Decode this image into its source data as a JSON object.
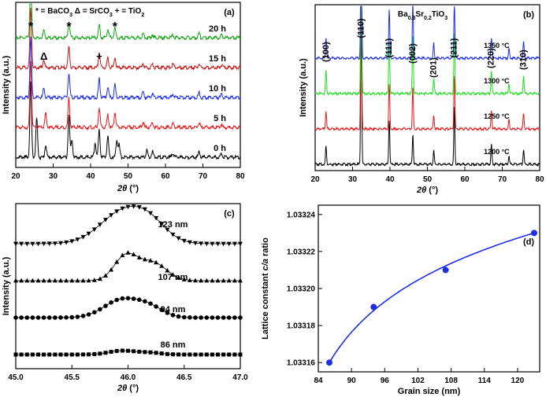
{
  "chart_data": [
    {
      "panel": "(a)",
      "type": "line",
      "legend_text": {
        "items": [
          {
            "symbol": "*",
            "label": "= BaCO",
            "sub": "3"
          },
          {
            "symbol": "Δ",
            "label": "= SrCO",
            "sub": "3"
          },
          {
            "symbol": "+",
            "label": "= TiO",
            "sub": "2"
          }
        ]
      },
      "xlabel": {
        "italic": "2θ",
        "rest": " (°)"
      },
      "ylabel": "Intensity (a.u.)",
      "xlim": [
        20,
        80
      ],
      "xticks": [
        "20",
        "30",
        "40",
        "50",
        "60",
        "70",
        "80"
      ],
      "peak_markers": [
        {
          "symbol": "*",
          "x": 24
        },
        {
          "symbol": "Δ",
          "x": 27.5
        },
        {
          "symbol": "*",
          "x": 34.2
        },
        {
          "symbol": "+",
          "x": 42.3
        },
        {
          "symbol": "*",
          "x": 46.5
        }
      ],
      "series": [
        {
          "name": "0 h",
          "color": "#000000",
          "offset": 0,
          "peaks": [
            [
              24,
              105
            ],
            [
              25.6,
              55
            ],
            [
              28,
              18
            ],
            [
              34.2,
              60
            ],
            [
              35,
              25
            ],
            [
              41.2,
              22
            ],
            [
              42.3,
              38
            ],
            [
              44.6,
              30
            ],
            [
              47,
              25
            ],
            [
              47.6,
              18
            ],
            [
              55,
              10
            ],
            [
              56.5,
              8
            ],
            [
              62,
              6
            ],
            [
              69,
              8
            ],
            [
              75,
              5
            ]
          ]
        },
        {
          "name": "5 h",
          "color": "#e31a1c",
          "offset": 1,
          "peaks": [
            [
              24,
              95
            ],
            [
              28,
              20
            ],
            [
              34.2,
              42
            ],
            [
              42.3,
              28
            ],
            [
              44.6,
              18
            ],
            [
              46.5,
              22
            ],
            [
              54,
              8
            ],
            [
              56.5,
              6
            ],
            [
              62,
              5
            ],
            [
              69,
              7
            ],
            [
              75,
              4
            ]
          ]
        },
        {
          "name": "10 h",
          "color": "#1f2fe0",
          "offset": 2,
          "peaks": [
            [
              24,
              85
            ],
            [
              27.5,
              12
            ],
            [
              34.2,
              35
            ],
            [
              42.3,
              26
            ],
            [
              44.6,
              16
            ],
            [
              46.5,
              18
            ],
            [
              54,
              8
            ],
            [
              56.5,
              6
            ],
            [
              62,
              5
            ],
            [
              69,
              7
            ],
            [
              75,
              4
            ]
          ]
        },
        {
          "name": "15 h",
          "color": "#c21818",
          "offset": 3,
          "peaks": [
            [
              24,
              85
            ],
            [
              27.5,
              12
            ],
            [
              34.2,
              30
            ],
            [
              42.3,
              22
            ],
            [
              44.6,
              14
            ],
            [
              46.5,
              15
            ],
            [
              54,
              7
            ],
            [
              56.5,
              5
            ],
            [
              62,
              5
            ],
            [
              69,
              6
            ],
            [
              75,
              4
            ]
          ]
        },
        {
          "name": "20 h",
          "color": "#1aa31a",
          "offset": 4,
          "peaks": [
            [
              24,
              85
            ],
            [
              27.5,
              10
            ],
            [
              34.2,
              24
            ],
            [
              42.3,
              18
            ],
            [
              44.6,
              12
            ],
            [
              46.5,
              14
            ],
            [
              54,
              6
            ],
            [
              56.5,
              5
            ],
            [
              62,
              4
            ],
            [
              69,
              6
            ],
            [
              75,
              4
            ]
          ]
        }
      ]
    },
    {
      "panel": "(b)",
      "type": "line",
      "title": {
        "parts": [
          [
            "Ba",
            ""
          ],
          [
            "0.8",
            "sub"
          ],
          [
            "Sr",
            ""
          ],
          [
            "0.2",
            "sub"
          ],
          [
            "TiO",
            ""
          ],
          [
            "3",
            "sub"
          ]
        ]
      },
      "xlabel": {
        "italic": "2θ",
        "rest": " (°)"
      },
      "ylabel": "Intensity (a.u.)",
      "xlim": [
        20,
        80
      ],
      "xticks": [
        "20",
        "30",
        "40",
        "50",
        "60",
        "70",
        "80"
      ],
      "miller_indices": [
        {
          "label": "(100)",
          "x": 22.9
        },
        {
          "label": "(110)",
          "x": 32.3
        },
        {
          "label": "(111)",
          "x": 39.8
        },
        {
          "label": "(002)",
          "x": 46.1
        },
        {
          "label": "(201)",
          "x": 51.7
        },
        {
          "label": "(211)",
          "x": 57.2
        },
        {
          "label": "(220)",
          "x": 67.1
        },
        {
          "label": "(310)",
          "x": 75.7
        }
      ],
      "series": [
        {
          "name": "1200 °C",
          "color": "#000000",
          "offset": 0,
          "peaks": [
            [
              22.9,
              12
            ],
            [
              32.3,
              100
            ],
            [
              39.8,
              30
            ],
            [
              46.1,
              20
            ],
            [
              51.7,
              9
            ],
            [
              57.2,
              38
            ],
            [
              67.1,
              13
            ],
            [
              71.8,
              6
            ],
            [
              75.7,
              10
            ]
          ]
        },
        {
          "name": "1250 °C",
          "color": "#e31a1c",
          "offset": 1,
          "peaks": [
            [
              22.9,
              12
            ],
            [
              32.3,
              100
            ],
            [
              39.8,
              30
            ],
            [
              46.1,
              28
            ],
            [
              51.7,
              9
            ],
            [
              57.2,
              36
            ],
            [
              67.1,
              13
            ],
            [
              71.8,
              6
            ],
            [
              75.7,
              10
            ]
          ]
        },
        {
          "name": "1300 °C",
          "color": "#1ee01e",
          "offset": 2,
          "peaks": [
            [
              22.9,
              15
            ],
            [
              32.3,
              100
            ],
            [
              39.8,
              35
            ],
            [
              46.1,
              40
            ],
            [
              51.7,
              10
            ],
            [
              57.2,
              40
            ],
            [
              67.1,
              15
            ],
            [
              71.8,
              7
            ],
            [
              75.7,
              12
            ]
          ]
        },
        {
          "name": "1350 °C",
          "color": "#1f2fe0",
          "offset": 3,
          "peaks": [
            [
              22.9,
              14
            ],
            [
              32.3,
              100
            ],
            [
              39.8,
              32
            ],
            [
              46.1,
              38
            ],
            [
              51.7,
              10
            ],
            [
              57.2,
              38
            ],
            [
              67.1,
              14
            ],
            [
              71.8,
              6
            ],
            [
              75.7,
              11
            ]
          ]
        }
      ]
    },
    {
      "panel": "(c)",
      "type": "scatter",
      "xlabel": {
        "italic": "2θ",
        "rest": " (°)"
      },
      "ylabel": "Intensity (a.u.)",
      "xlim": [
        45.0,
        47.0
      ],
      "xticks": [
        "45.0",
        "45.5",
        "46.0",
        "46.5",
        "47.0"
      ],
      "series": [
        {
          "name": "86 nm",
          "marker": "square",
          "offset": 0,
          "peaks": [
            [
              45.95,
              0.09,
              0.12
            ],
            [
              46.2,
              0.04,
              0.1
            ]
          ]
        },
        {
          "name": "94 nm",
          "marker": "circle",
          "offset": 1,
          "peaks": [
            [
              45.95,
              0.42,
              0.16
            ],
            [
              46.2,
              0.2,
              0.12
            ]
          ]
        },
        {
          "name": "107 nm",
          "marker": "triangle-up",
          "offset": 2,
          "peaks": [
            [
              45.98,
              0.58,
              0.1
            ],
            [
              46.22,
              0.42,
              0.12
            ]
          ]
        },
        {
          "name": "123 nm",
          "marker": "triangle-down",
          "offset": 3,
          "peaks": [
            [
              45.95,
              0.72,
              0.2
            ],
            [
              46.2,
              0.38,
              0.15
            ]
          ]
        }
      ]
    },
    {
      "panel": "(d)",
      "type": "scatter",
      "xlabel": "Grain size (nm)",
      "ylabel": {
        "pre": "Lattice constant ",
        "italic": "c/a",
        "post": " ratio"
      },
      "xlim": [
        84,
        124
      ],
      "ylim": [
        1.033155,
        1.033245
      ],
      "xticks": [
        "84",
        "90",
        "96",
        "102",
        "108",
        "114",
        "120"
      ],
      "yticks": [
        "1.03316",
        "1.03318",
        "1.03320",
        "1.03322",
        "1.03324"
      ],
      "point_color": "#1f2fe0",
      "x": [
        86,
        94,
        107,
        123
      ],
      "y": [
        1.03316,
        1.03319,
        1.03321,
        1.03323
      ]
    }
  ]
}
